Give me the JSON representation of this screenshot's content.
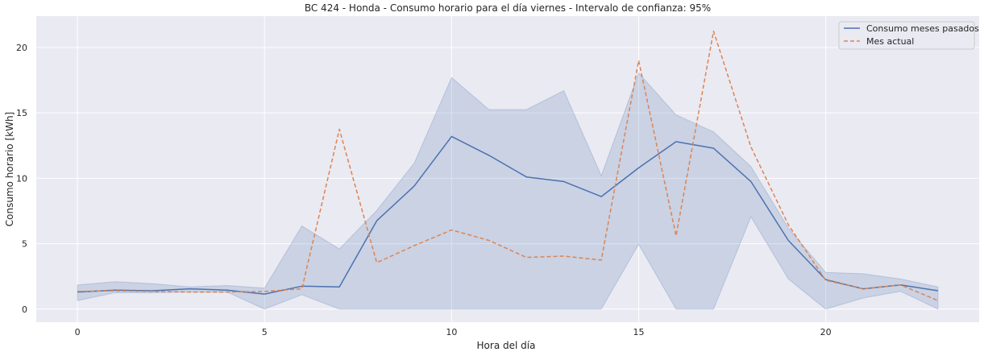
{
  "chart_data": {
    "type": "line",
    "title": "BC 424 - Honda - Consumo horario para el día viernes - Intervalo de confianza: 95%",
    "xlabel": "Hora del día",
    "ylabel": "Consumo horario [kWh]",
    "xlim": [
      -1.1,
      24.1
    ],
    "ylim": [
      -1.0,
      22.4
    ],
    "xticks": [
      0,
      5,
      10,
      15,
      20
    ],
    "yticks": [
      0,
      5,
      10,
      15,
      20
    ],
    "grid": true,
    "legend_position": "top-right",
    "x": [
      0,
      1,
      2,
      3,
      4,
      5,
      6,
      7,
      8,
      9,
      10,
      11,
      12,
      13,
      14,
      15,
      16,
      17,
      18,
      19,
      20,
      21,
      22,
      23
    ],
    "series": [
      {
        "name": "Consumo meses pasados",
        "color": "#4c72b0",
        "style": "solid",
        "values": [
          1.3,
          1.45,
          1.4,
          1.55,
          1.45,
          1.15,
          1.75,
          1.7,
          6.75,
          9.4,
          13.2,
          11.75,
          10.1,
          9.75,
          8.6,
          10.8,
          12.8,
          12.3,
          9.75,
          5.25,
          2.25,
          1.55,
          1.85,
          1.4
        ]
      },
      {
        "name": "Mes actual",
        "color": "#dd8452",
        "style": "dashed",
        "values": [
          1.35,
          1.4,
          1.35,
          1.3,
          1.3,
          1.35,
          1.55,
          13.75,
          3.55,
          4.85,
          6.05,
          5.25,
          3.95,
          4.05,
          3.75,
          19.0,
          5.6,
          21.25,
          12.4,
          6.45,
          2.2,
          1.55,
          1.85,
          0.65
        ]
      }
    ],
    "confidence_band": {
      "series": "Consumo meses pasados",
      "color": "#4c72b0",
      "lower": [
        0.65,
        1.25,
        1.25,
        1.3,
        1.3,
        0.0,
        1.1,
        0.0,
        0.0,
        0.0,
        0.0,
        0.0,
        0.0,
        0.0,
        0.0,
        4.95,
        0.0,
        0.0,
        7.05,
        2.3,
        0.0,
        0.85,
        1.35,
        0.0
      ],
      "upper": [
        1.85,
        2.1,
        1.95,
        1.7,
        1.8,
        1.6,
        6.35,
        4.6,
        7.55,
        11.15,
        17.7,
        15.25,
        15.25,
        16.7,
        10.2,
        18.05,
        14.85,
        13.55,
        10.9,
        6.2,
        2.8,
        2.7,
        2.3,
        1.7
      ]
    }
  }
}
